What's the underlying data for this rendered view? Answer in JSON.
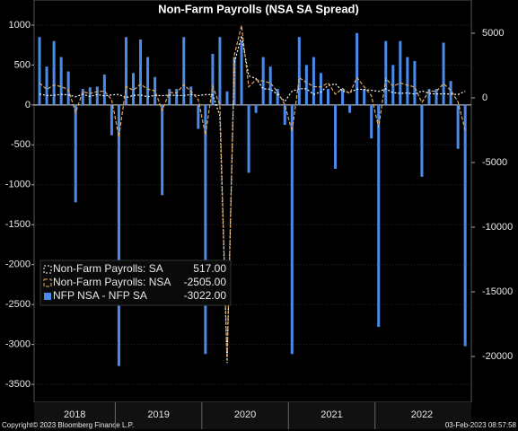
{
  "chart_data": {
    "type": "bar-line",
    "title": "Non-Farm Payrolls (NSA SA Spread)",
    "categories": [
      "2018",
      null,
      null,
      null,
      null,
      null,
      null,
      null,
      null,
      null,
      null,
      "2019",
      null,
      null,
      null,
      null,
      null,
      null,
      null,
      null,
      null,
      null,
      null,
      "2020",
      null,
      null,
      null,
      null,
      null,
      null,
      null,
      null,
      null,
      null,
      null,
      "2021",
      null,
      null,
      null,
      null,
      null,
      null,
      null,
      null,
      null,
      null,
      null,
      "2022",
      null,
      null,
      null,
      null,
      null,
      null,
      null,
      null,
      null,
      null,
      null,
      null
    ],
    "series": [
      {
        "name": "Non-Farm Payrolls: SA",
        "legend_value": "517.00",
        "color": "#ffffff",
        "axis": "y2",
        "values": [
          300,
          180,
          200,
          270,
          230,
          90,
          280,
          110,
          260,
          150,
          230,
          270,
          20,
          190,
          230,
          80,
          200,
          170,
          220,
          180,
          180,
          260,
          180,
          250,
          260,
          -1400,
          -20500,
          2700,
          4800,
          1700,
          1500,
          700,
          680,
          260,
          -270,
          520,
          710,
          700,
          270,
          450,
          960,
          1090,
          520,
          420,
          680,
          650,
          590,
          500,
          700,
          400,
          350,
          380,
          290,
          540,
          350,
          300,
          320,
          290,
          260,
          517
        ]
      },
      {
        "name": "Non-Farm Payrolls: NSA",
        "legend_value": "-2505.00",
        "color": "#e0a860",
        "axis": "y2",
        "values": [
          1150,
          660,
          1000,
          870,
          650,
          -1130,
          480,
          330,
          490,
          530,
          -150,
          -3000,
          870,
          590,
          1050,
          680,
          550,
          -960,
          420,
          380,
          1030,
          490,
          -120,
          -2870,
          900,
          -550,
          -20330,
          3300,
          5600,
          850,
          1400,
          1300,
          1160,
          460,
          -520,
          -2600,
          1560,
          1200,
          870,
          850,
          1160,
          290,
          720,
          320,
          1580,
          850,
          170,
          -2280,
          1500,
          900,
          1150,
          980,
          840,
          -360,
          550,
          500,
          1100,
          590,
          -290,
          -2505
        ]
      },
      {
        "name": "NFP NSA - NFP SA",
        "legend_value": "-3022.00",
        "color": "#4a8ae8",
        "values": [
          850,
          480,
          800,
          600,
          420,
          -1220,
          200,
          220,
          230,
          380,
          -380,
          -3270,
          850,
          400,
          820,
          600,
          350,
          -1130,
          200,
          200,
          850,
          230,
          -300,
          -3120,
          640,
          850,
          170,
          600,
          800,
          -850,
          -100,
          600,
          480,
          200,
          -250,
          -3120,
          850,
          500,
          600,
          400,
          200,
          -800,
          200,
          -100,
          900,
          200,
          -420,
          -2780,
          800,
          500,
          800,
          600,
          550,
          -900,
          200,
          200,
          780,
          300,
          -550,
          -3022
        ]
      }
    ],
    "ylim": [
      -3724,
      1314
    ],
    "yticks": [
      1000,
      500,
      0,
      -500,
      -1000,
      -1500,
      -2000,
      -2500,
      -3000,
      -3500
    ],
    "y2lim": [
      -23540,
      7570
    ],
    "y2ticks": [
      5000,
      0,
      -5000,
      -10000,
      -15000,
      -20000
    ],
    "grid": true,
    "footer_left": "Copyright© 2023 Bloomberg Finance L.P.",
    "footer_right": "03-Feb-2023 08:57:58"
  }
}
